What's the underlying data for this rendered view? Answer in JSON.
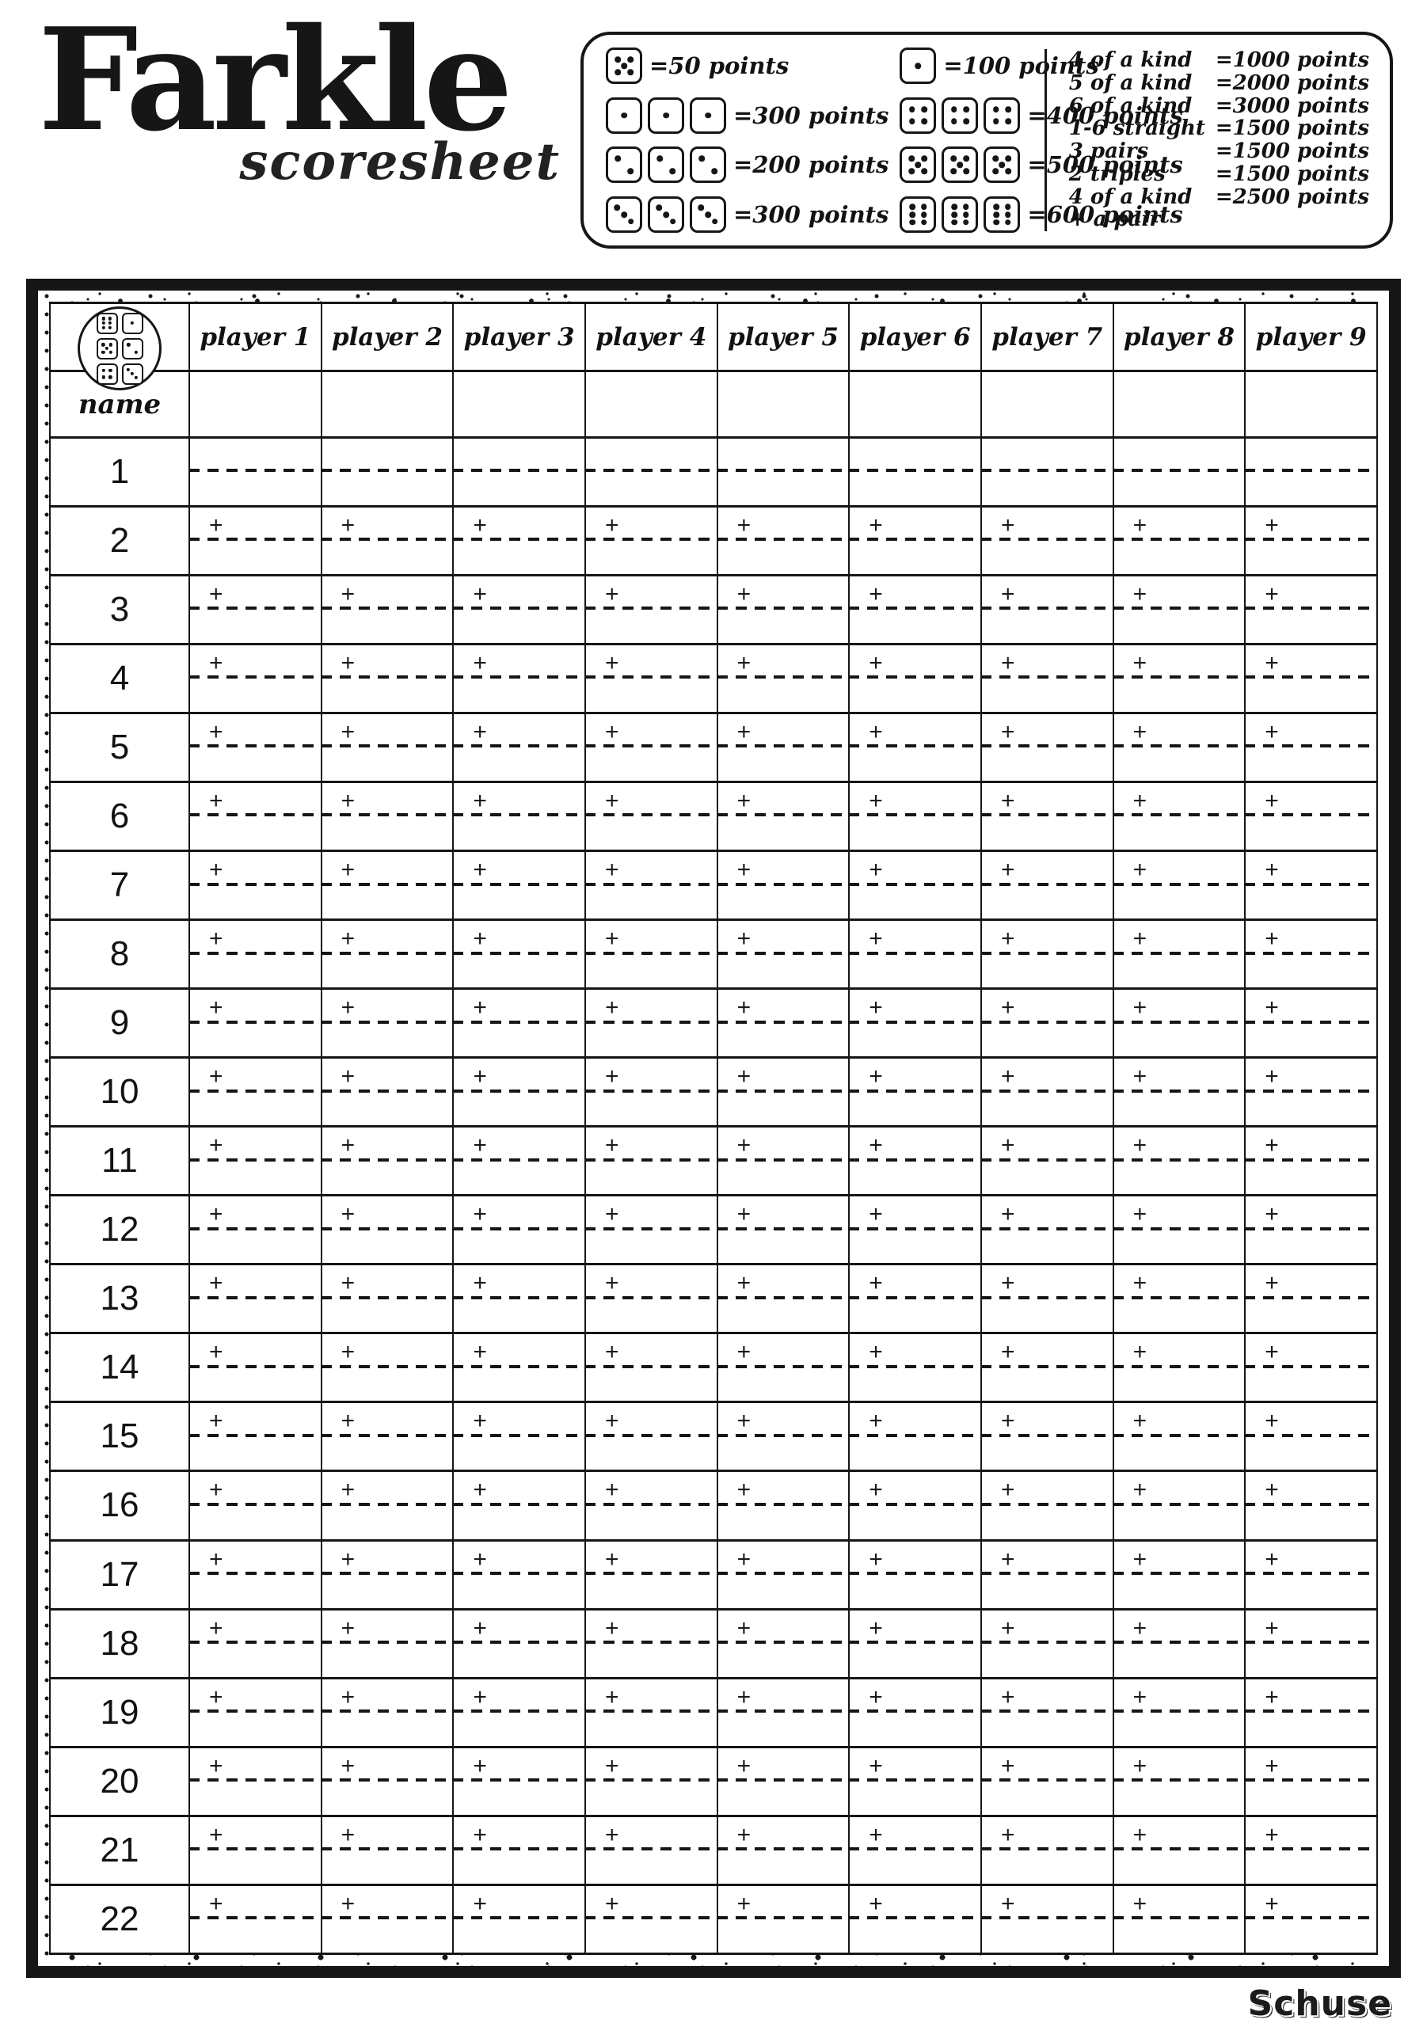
{
  "page": {
    "title": "Farkle",
    "subtitle": "scoresheet",
    "brand": "Schuse"
  },
  "legend": {
    "dice_rules": [
      {
        "dice": [
          5
        ],
        "label": "=50 points"
      },
      {
        "dice": [
          1
        ],
        "label": "=100 points"
      },
      {
        "dice": [
          1,
          1,
          1
        ],
        "label": "=300 points"
      },
      {
        "dice": [
          4,
          4,
          4
        ],
        "label": "=400 points"
      },
      {
        "dice": [
          2,
          2,
          2
        ],
        "label": "=200 points"
      },
      {
        "dice": [
          5,
          5,
          5
        ],
        "label": "=500 points"
      },
      {
        "dice": [
          3,
          3,
          3
        ],
        "label": "=300 points"
      },
      {
        "dice": [
          6,
          6,
          6
        ],
        "label": "=600 points"
      }
    ],
    "combo_rules": [
      {
        "name": "4 of a kind",
        "points": "=1000 points"
      },
      {
        "name": "5 of a kind",
        "points": "=2000 points"
      },
      {
        "name": "6 of a kind",
        "points": "=3000 points"
      },
      {
        "name": "1-6 straight",
        "points": "=1500 points"
      },
      {
        "name": "3 pairs",
        "points": "=1500 points"
      },
      {
        "name": "2 triples",
        "points": "=1500 points"
      },
      {
        "name": "4 of a kind + a pair",
        "points": "=2500 points"
      }
    ]
  },
  "table": {
    "corner_dice": [
      6,
      1,
      5,
      2,
      4,
      3
    ],
    "player_columns": [
      "player 1",
      "player 2",
      "player 3",
      "player 4",
      "player 5",
      "player 6",
      "player 7",
      "player 8",
      "player 9"
    ],
    "name_row_label": "name",
    "rounds": [
      "1",
      "2",
      "3",
      "4",
      "5",
      "6",
      "7",
      "8",
      "9",
      "10",
      "11",
      "12",
      "13",
      "14",
      "15",
      "16",
      "17",
      "18",
      "19",
      "20",
      "21",
      "22"
    ],
    "plus_sign": "+"
  }
}
